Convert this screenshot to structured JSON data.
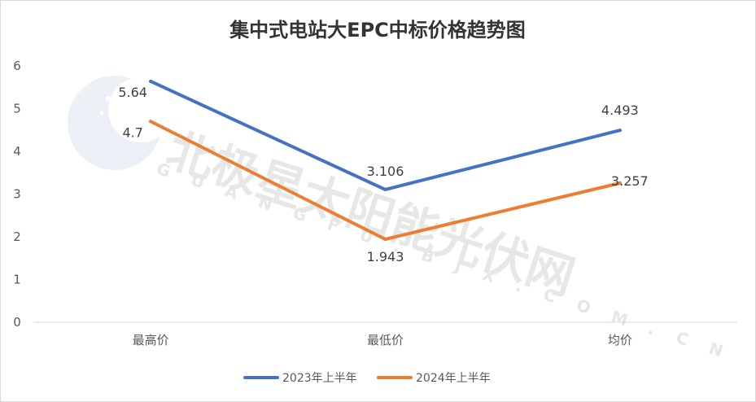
{
  "chart_data": {
    "type": "line",
    "title": "集中式电站大EPC中标价格趋势图",
    "categories": [
      "最高价",
      "最低价",
      "均价"
    ],
    "series": [
      {
        "name": "2023年上半年",
        "color": "#4472c4",
        "values": [
          5.64,
          3.106,
          4.493
        ],
        "labels": [
          "5.64",
          "3.106",
          "4.493"
        ]
      },
      {
        "name": "2024年上半年",
        "color": "#ed7d31",
        "values": [
          4.7,
          1.943,
          3.257
        ],
        "labels": [
          "4.7",
          "1.943",
          "3.257"
        ]
      }
    ],
    "ylim": [
      0,
      6
    ],
    "yticks": [
      "0",
      "1",
      "2",
      "3",
      "4",
      "5",
      "6"
    ],
    "grid": false,
    "legend": "bottom",
    "xlabel": "",
    "ylabel": ""
  },
  "watermark": {
    "text": "北极星太阳能光伏网",
    "subtext": "GUANGFU.BJX.COM.CN",
    "logo": "polaris-logo"
  }
}
